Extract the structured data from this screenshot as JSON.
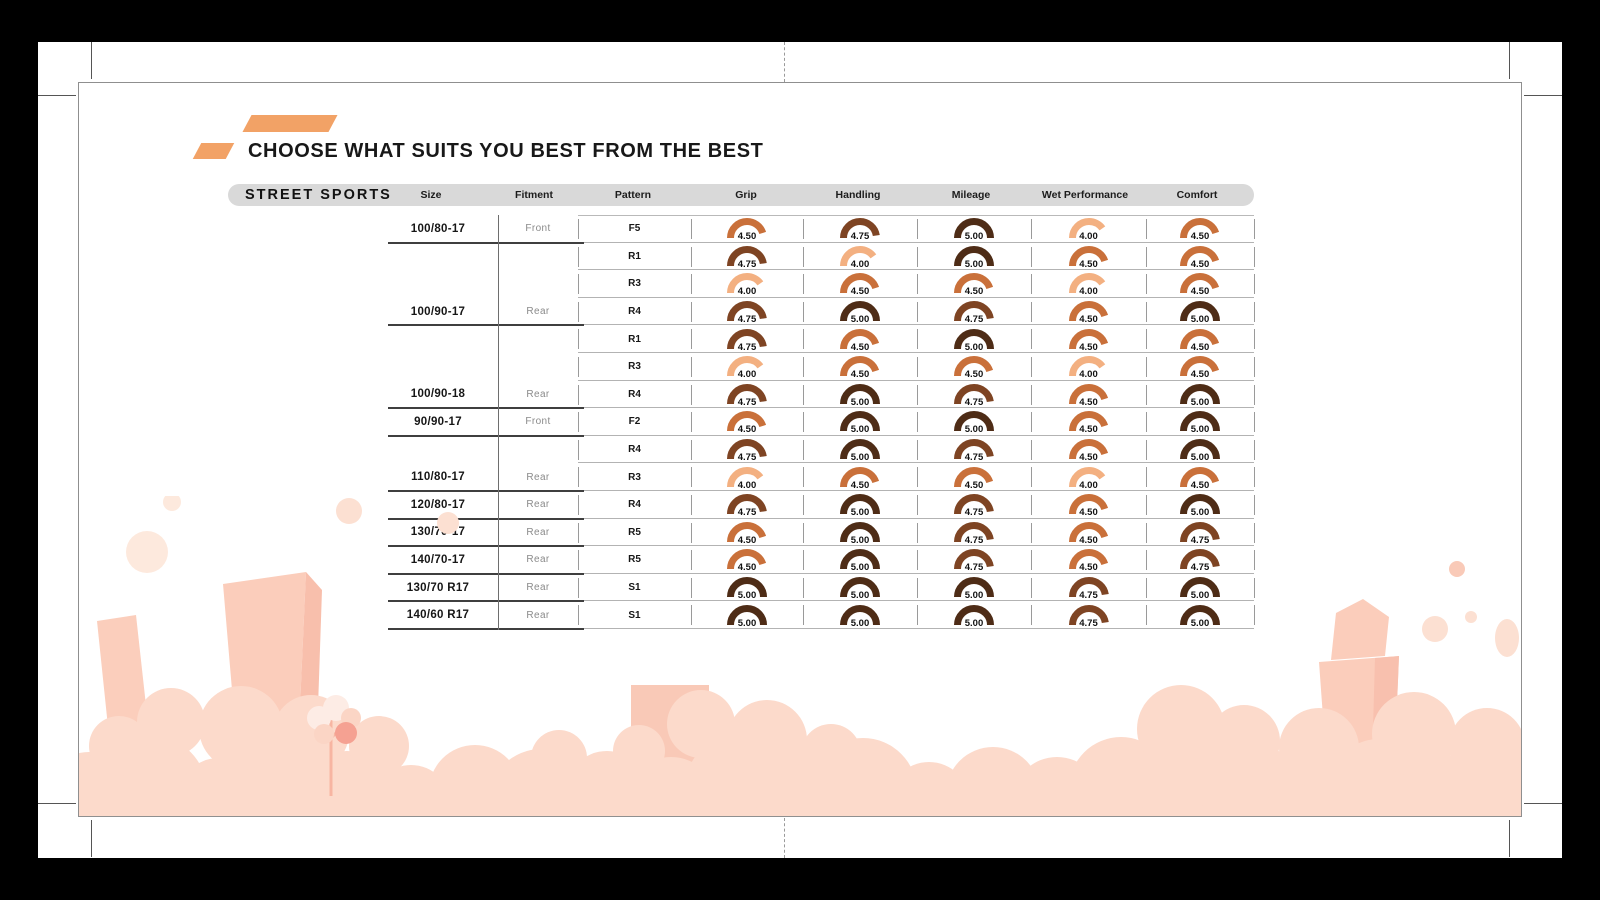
{
  "page": {
    "title": "CHOOSE WHAT SUITS YOU BEST FROM THE BEST"
  },
  "table": {
    "category": "STREET SPORTS",
    "columns": [
      "Size",
      "Fitment",
      "Pattern",
      "Grip",
      "Handling",
      "Mileage",
      "Wet Performance",
      "Comfort"
    ],
    "metric_keys": [
      "grip",
      "handling",
      "mileage",
      "wet_performance",
      "comfort"
    ],
    "rating_scale_max": 5,
    "rating_colors": {
      "4.00": "#f3b081",
      "4.50": "#c9703a",
      "4.75": "#7e4423",
      "5.00": "#4e2c16"
    },
    "rows": [
      {
        "size": "100/80-17",
        "fitment": "Front",
        "pattern": "F5",
        "ratings": {
          "grip": "4.50",
          "handling": "4.75",
          "mileage": "5.00",
          "wet_performance": "4.00",
          "comfort": "4.50"
        },
        "group_end": true
      },
      {
        "size": "",
        "fitment": "",
        "pattern": "R1",
        "ratings": {
          "grip": "4.75",
          "handling": "4.00",
          "mileage": "5.00",
          "wet_performance": "4.50",
          "comfort": "4.50"
        },
        "group_end": false
      },
      {
        "size": "",
        "fitment": "",
        "pattern": "R3",
        "ratings": {
          "grip": "4.00",
          "handling": "4.50",
          "mileage": "4.50",
          "wet_performance": "4.00",
          "comfort": "4.50"
        },
        "group_end": false
      },
      {
        "size": "100/90-17",
        "fitment": "Rear",
        "pattern": "R4",
        "ratings": {
          "grip": "4.75",
          "handling": "5.00",
          "mileage": "4.75",
          "wet_performance": "4.50",
          "comfort": "5.00"
        },
        "group_end": true
      },
      {
        "size": "",
        "fitment": "",
        "pattern": "R1",
        "ratings": {
          "grip": "4.75",
          "handling": "4.50",
          "mileage": "5.00",
          "wet_performance": "4.50",
          "comfort": "4.50"
        },
        "group_end": false
      },
      {
        "size": "",
        "fitment": "",
        "pattern": "R3",
        "ratings": {
          "grip": "4.00",
          "handling": "4.50",
          "mileage": "4.50",
          "wet_performance": "4.00",
          "comfort": "4.50"
        },
        "group_end": false
      },
      {
        "size": "100/90-18",
        "fitment": "Rear",
        "pattern": "R4",
        "ratings": {
          "grip": "4.75",
          "handling": "5.00",
          "mileage": "4.75",
          "wet_performance": "4.50",
          "comfort": "5.00"
        },
        "group_end": true
      },
      {
        "size": "90/90-17",
        "fitment": "Front",
        "pattern": "F2",
        "ratings": {
          "grip": "4.50",
          "handling": "5.00",
          "mileage": "5.00",
          "wet_performance": "4.50",
          "comfort": "5.00"
        },
        "group_end": true
      },
      {
        "size": "",
        "fitment": "",
        "pattern": "R4",
        "ratings": {
          "grip": "4.75",
          "handling": "5.00",
          "mileage": "4.75",
          "wet_performance": "4.50",
          "comfort": "5.00"
        },
        "group_end": false
      },
      {
        "size": "110/80-17",
        "fitment": "Rear",
        "pattern": "R3",
        "ratings": {
          "grip": "4.00",
          "handling": "4.50",
          "mileage": "4.50",
          "wet_performance": "4.00",
          "comfort": "4.50"
        },
        "group_end": true
      },
      {
        "size": "120/80-17",
        "fitment": "Rear",
        "pattern": "R4",
        "ratings": {
          "grip": "4.75",
          "handling": "5.00",
          "mileage": "4.75",
          "wet_performance": "4.50",
          "comfort": "5.00"
        },
        "group_end": true
      },
      {
        "size": "130/70-17",
        "fitment": "Rear",
        "pattern": "R5",
        "ratings": {
          "grip": "4.50",
          "handling": "5.00",
          "mileage": "4.75",
          "wet_performance": "4.50",
          "comfort": "4.75"
        },
        "group_end": true
      },
      {
        "size": "140/70-17",
        "fitment": "Rear",
        "pattern": "R5",
        "ratings": {
          "grip": "4.50",
          "handling": "5.00",
          "mileage": "4.75",
          "wet_performance": "4.50",
          "comfort": "4.75"
        },
        "group_end": true
      },
      {
        "size": "130/70 R17",
        "fitment": "Rear",
        "pattern": "S1",
        "ratings": {
          "grip": "5.00",
          "handling": "5.00",
          "mileage": "5.00",
          "wet_performance": "4.75",
          "comfort": "5.00"
        },
        "group_end": true
      },
      {
        "size": "140/60 R17",
        "fitment": "Rear",
        "pattern": "S1",
        "ratings": {
          "grip": "5.00",
          "handling": "5.00",
          "mileage": "5.00",
          "wet_performance": "4.75",
          "comfort": "5.00"
        },
        "group_end": true
      }
    ]
  },
  "colors": {
    "accent_orange": "#f2a266",
    "header_bar_gray": "#d9d9d9",
    "decor_pink_light": "#fcdacb",
    "decor_pink_mid": "#f9c9b7",
    "decor_pink_accent": "#f5a192"
  }
}
